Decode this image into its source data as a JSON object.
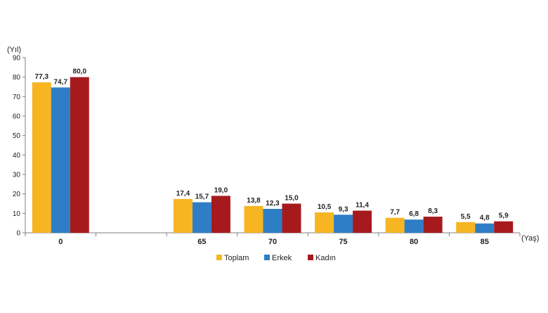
{
  "chart_data": {
    "type": "bar",
    "y_unit_label": "(Yıl)",
    "x_unit_label": "(Yaş)",
    "categories": [
      "0",
      "",
      "65",
      "70",
      "75",
      "80",
      "85"
    ],
    "series": [
      {
        "name": "Toplam",
        "color": "#F7B522",
        "values": [
          77.3,
          null,
          17.4,
          13.8,
          10.5,
          7.7,
          5.5
        ],
        "labels": [
          "77,3",
          "",
          "17,4",
          "13,8",
          "10,5",
          "7,7",
          "5,5"
        ]
      },
      {
        "name": "Erkek",
        "color": "#2E7EC5",
        "values": [
          74.7,
          null,
          15.7,
          12.3,
          9.3,
          6.8,
          4.8
        ],
        "labels": [
          "74,7",
          "",
          "15,7",
          "12,3",
          "9,3",
          "6,8",
          "4,8"
        ]
      },
      {
        "name": "Kadın",
        "color": "#A61A1E",
        "values": [
          80.0,
          null,
          19.0,
          15.0,
          11.4,
          8.3,
          5.9
        ],
        "labels": [
          "80,0",
          "",
          "19,0",
          "15,0",
          "11,4",
          "8,3",
          "5,9"
        ]
      }
    ],
    "ylim": [
      0,
      90
    ],
    "yticks": [
      0,
      10,
      20,
      30,
      40,
      50,
      60,
      70,
      80,
      90
    ],
    "grid": false,
    "legend": "bottom-center"
  }
}
